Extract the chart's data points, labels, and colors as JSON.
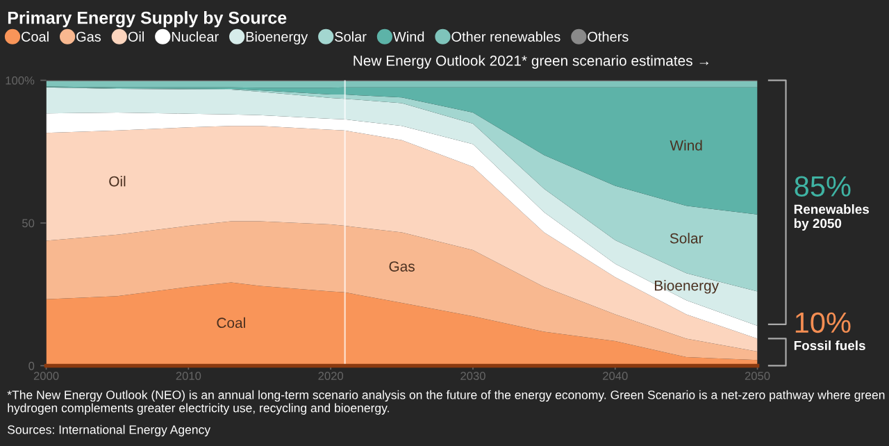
{
  "chart_data": {
    "type": "area",
    "stacked": true,
    "title": "Primary Energy Supply by Source",
    "x": [
      2000,
      2005,
      2010,
      2013,
      2015,
      2020,
      2021,
      2025,
      2030,
      2035,
      2040,
      2045,
      2050
    ],
    "series": [
      {
        "name": "Coal",
        "color": "#f99559",
        "values": [
          23.3,
          24.4,
          27.6,
          29.2,
          28.0,
          26.0,
          25.7,
          22.0,
          17.3,
          11.9,
          8.6,
          3.0,
          2.0
        ]
      },
      {
        "name": "Gas",
        "color": "#f8b890",
        "values": [
          20.5,
          21.5,
          21.4,
          21.4,
          22.6,
          23.5,
          23.3,
          24.7,
          23.2,
          15.7,
          9.4,
          6.5,
          3.0
        ]
      },
      {
        "name": "Oil",
        "color": "#fcd5be",
        "values": [
          37.8,
          36.5,
          34.5,
          33.4,
          33.4,
          33.2,
          33.4,
          32.3,
          29.2,
          19.1,
          13.0,
          8.5,
          4.5
        ]
      },
      {
        "name": "Nuclear",
        "color": "#ffffff",
        "values": [
          6.8,
          6.3,
          4.8,
          4.0,
          3.8,
          3.8,
          3.9,
          5.0,
          7.9,
          7.1,
          4.7,
          4.9,
          4.5
        ]
      },
      {
        "name": "Bioenergy",
        "color": "#d6ecea",
        "values": [
          9.1,
          8.3,
          8.5,
          8.7,
          8.2,
          7.3,
          7.2,
          8.0,
          7.2,
          8.2,
          8.3,
          9.5,
          12.0
        ]
      },
      {
        "name": "Solar",
        "color": "#a3d6d0",
        "values": [
          0.1,
          0.2,
          0.3,
          0.3,
          0.5,
          1.2,
          1.5,
          2.0,
          3.9,
          11.8,
          19.0,
          23.6,
          27.0
        ]
      },
      {
        "name": "Wind",
        "color": "#5db3a8",
        "values": [
          0.2,
          0.3,
          0.4,
          0.5,
          0.9,
          2.4,
          2.5,
          3.5,
          8.8,
          23.7,
          34.5,
          41.5,
          44.5
        ]
      },
      {
        "name": "Other renewables",
        "color": "#7fc4bb",
        "values": [
          2.0,
          2.2,
          2.2,
          2.2,
          2.3,
          2.3,
          2.2,
          2.2,
          2.2,
          2.2,
          2.2,
          2.2,
          2.2
        ]
      },
      {
        "name": "Others",
        "color": "#8a8a8a",
        "values": [
          0.2,
          0.3,
          0.3,
          0.3,
          0.3,
          0.3,
          0.3,
          0.3,
          0.3,
          0.3,
          0.3,
          0.3,
          0.3
        ]
      }
    ],
    "xlim": [
      2000,
      2050
    ],
    "ylim": [
      0,
      100
    ],
    "xticks": [
      2000,
      2010,
      2020,
      2030,
      2040,
      2050
    ],
    "yticks": [
      0,
      50,
      {
        "value": 100,
        "label": "100%"
      }
    ],
    "grid": false,
    "legend": "top left",
    "ref_lines": [
      {
        "axis": "x",
        "value": 2021,
        "label": "New Energy Outlook 2021* green scenario estimates →",
        "color": "#ffffff"
      }
    ],
    "annotations": [
      "85%",
      "Renewables by 2050",
      "10%",
      "Fossil fuels",
      "*The New Energy Outlook (NEO) is an annual long-term scenario analysis on the future of the energy economy. Green Scenario is a net-zero pathway where green hydrogen complements greater electricity use, recycling and bioenergy.",
      "Sources: International Energy Agency"
    ]
  }
}
